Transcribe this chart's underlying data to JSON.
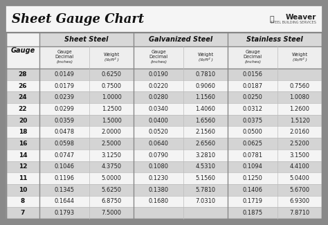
{
  "title": "Sheet Gauge Chart",
  "bg_outer": "#898989",
  "bg_inner": "#ffffff",
  "title_area_bg": "#f0f0f0",
  "row_bg_even": "#d4d4d4",
  "row_bg_odd": "#f4f4f4",
  "header_section_bg": "#e0e0e0",
  "gauge_header_bg": "#f0f0f0",
  "divider_thick": "#888888",
  "divider_thin": "#aaaaaa",
  "gauges": [
    28,
    26,
    24,
    22,
    20,
    18,
    16,
    14,
    12,
    11,
    10,
    8,
    7
  ],
  "sheet_steel": [
    [
      "0.0149",
      "0.6250"
    ],
    [
      "0.0179",
      "0.7500"
    ],
    [
      "0.0239",
      "1.0000"
    ],
    [
      "0.0299",
      "1.2500"
    ],
    [
      "0.0359",
      "1.5000"
    ],
    [
      "0.0478",
      "2.0000"
    ],
    [
      "0.0598",
      "2.5000"
    ],
    [
      "0.0747",
      "3.1250"
    ],
    [
      "0.1046",
      "4.3750"
    ],
    [
      "0.1196",
      "5.0000"
    ],
    [
      "0.1345",
      "5.6250"
    ],
    [
      "0.1644",
      "6.8750"
    ],
    [
      "0.1793",
      "7.5000"
    ]
  ],
  "galvanized_steel": [
    [
      "0.0190",
      "0.7810"
    ],
    [
      "0.0220",
      "0.9060"
    ],
    [
      "0.0280",
      "1.1560"
    ],
    [
      "0.0340",
      "1.4060"
    ],
    [
      "0.0400",
      "1.6560"
    ],
    [
      "0.0520",
      "2.1560"
    ],
    [
      "0.0640",
      "2.6560"
    ],
    [
      "0.0790",
      "3.2810"
    ],
    [
      "0.1080",
      "4.5310"
    ],
    [
      "0.1230",
      "5.1560"
    ],
    [
      "0.1380",
      "5.7810"
    ],
    [
      "0.1680",
      "7.0310"
    ],
    [
      "",
      ""
    ]
  ],
  "stainless_steel": [
    [
      "0.0156",
      ""
    ],
    [
      "0.0187",
      "0.7560"
    ],
    [
      "0.0250",
      "1.0080"
    ],
    [
      "0.0312",
      "1.2600"
    ],
    [
      "0.0375",
      "1.5120"
    ],
    [
      "0.0500",
      "2.0160"
    ],
    [
      "0.0625",
      "2.5200"
    ],
    [
      "0.0781",
      "3.1500"
    ],
    [
      "0.1094",
      "4.4100"
    ],
    [
      "0.1250",
      "5.0400"
    ],
    [
      "0.1406",
      "5.6700"
    ],
    [
      "0.1719",
      "6.9300"
    ],
    [
      "0.1875",
      "7.8710"
    ]
  ]
}
